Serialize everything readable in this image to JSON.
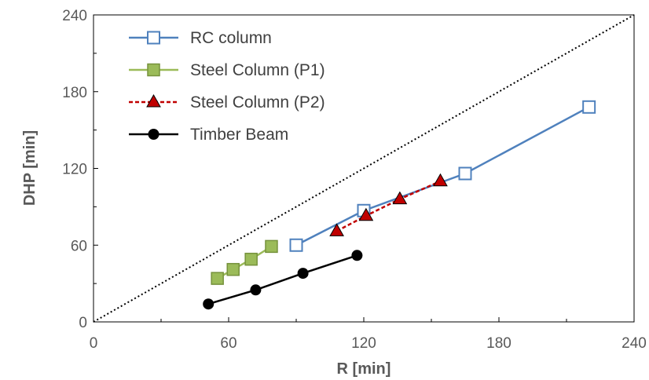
{
  "chart_data": {
    "type": "scatter",
    "title": "",
    "xlabel": "R [min]",
    "ylabel": "DHP [min]",
    "xlim": [
      0,
      240
    ],
    "ylim": [
      0,
      240
    ],
    "xticks": [
      0,
      60,
      120,
      180,
      240
    ],
    "yticks": [
      0,
      60,
      120,
      180,
      240
    ],
    "grid": false,
    "legend_position": "top-left",
    "reference_line": {
      "style": "dotted",
      "color": "#000000",
      "from": [
        0,
        0
      ],
      "to": [
        240,
        240
      ]
    },
    "series": [
      {
        "name": "RC column",
        "color": "#4f81bd",
        "marker": "square-open",
        "line": "solid",
        "points": [
          [
            90,
            60
          ],
          [
            120,
            87
          ],
          [
            165,
            116
          ],
          [
            220,
            168
          ]
        ]
      },
      {
        "name": "Steel Column (P1)",
        "color": "#9bbb59",
        "marker": "square-filled",
        "line": "solid",
        "points": [
          [
            55,
            34
          ],
          [
            62,
            41
          ],
          [
            70,
            49
          ],
          [
            79,
            59
          ]
        ]
      },
      {
        "name": "Steel Column (P2)",
        "color": "#c00000",
        "marker": "triangle-filled",
        "line": "dashed",
        "points": [
          [
            108,
            71
          ],
          [
            121,
            83
          ],
          [
            136,
            96
          ],
          [
            154,
            110
          ]
        ]
      },
      {
        "name": "Timber Beam",
        "color": "#000000",
        "marker": "circle-filled",
        "line": "solid",
        "points": [
          [
            51,
            14
          ],
          [
            72,
            25
          ],
          [
            93,
            38
          ],
          [
            117,
            52
          ]
        ]
      }
    ]
  }
}
